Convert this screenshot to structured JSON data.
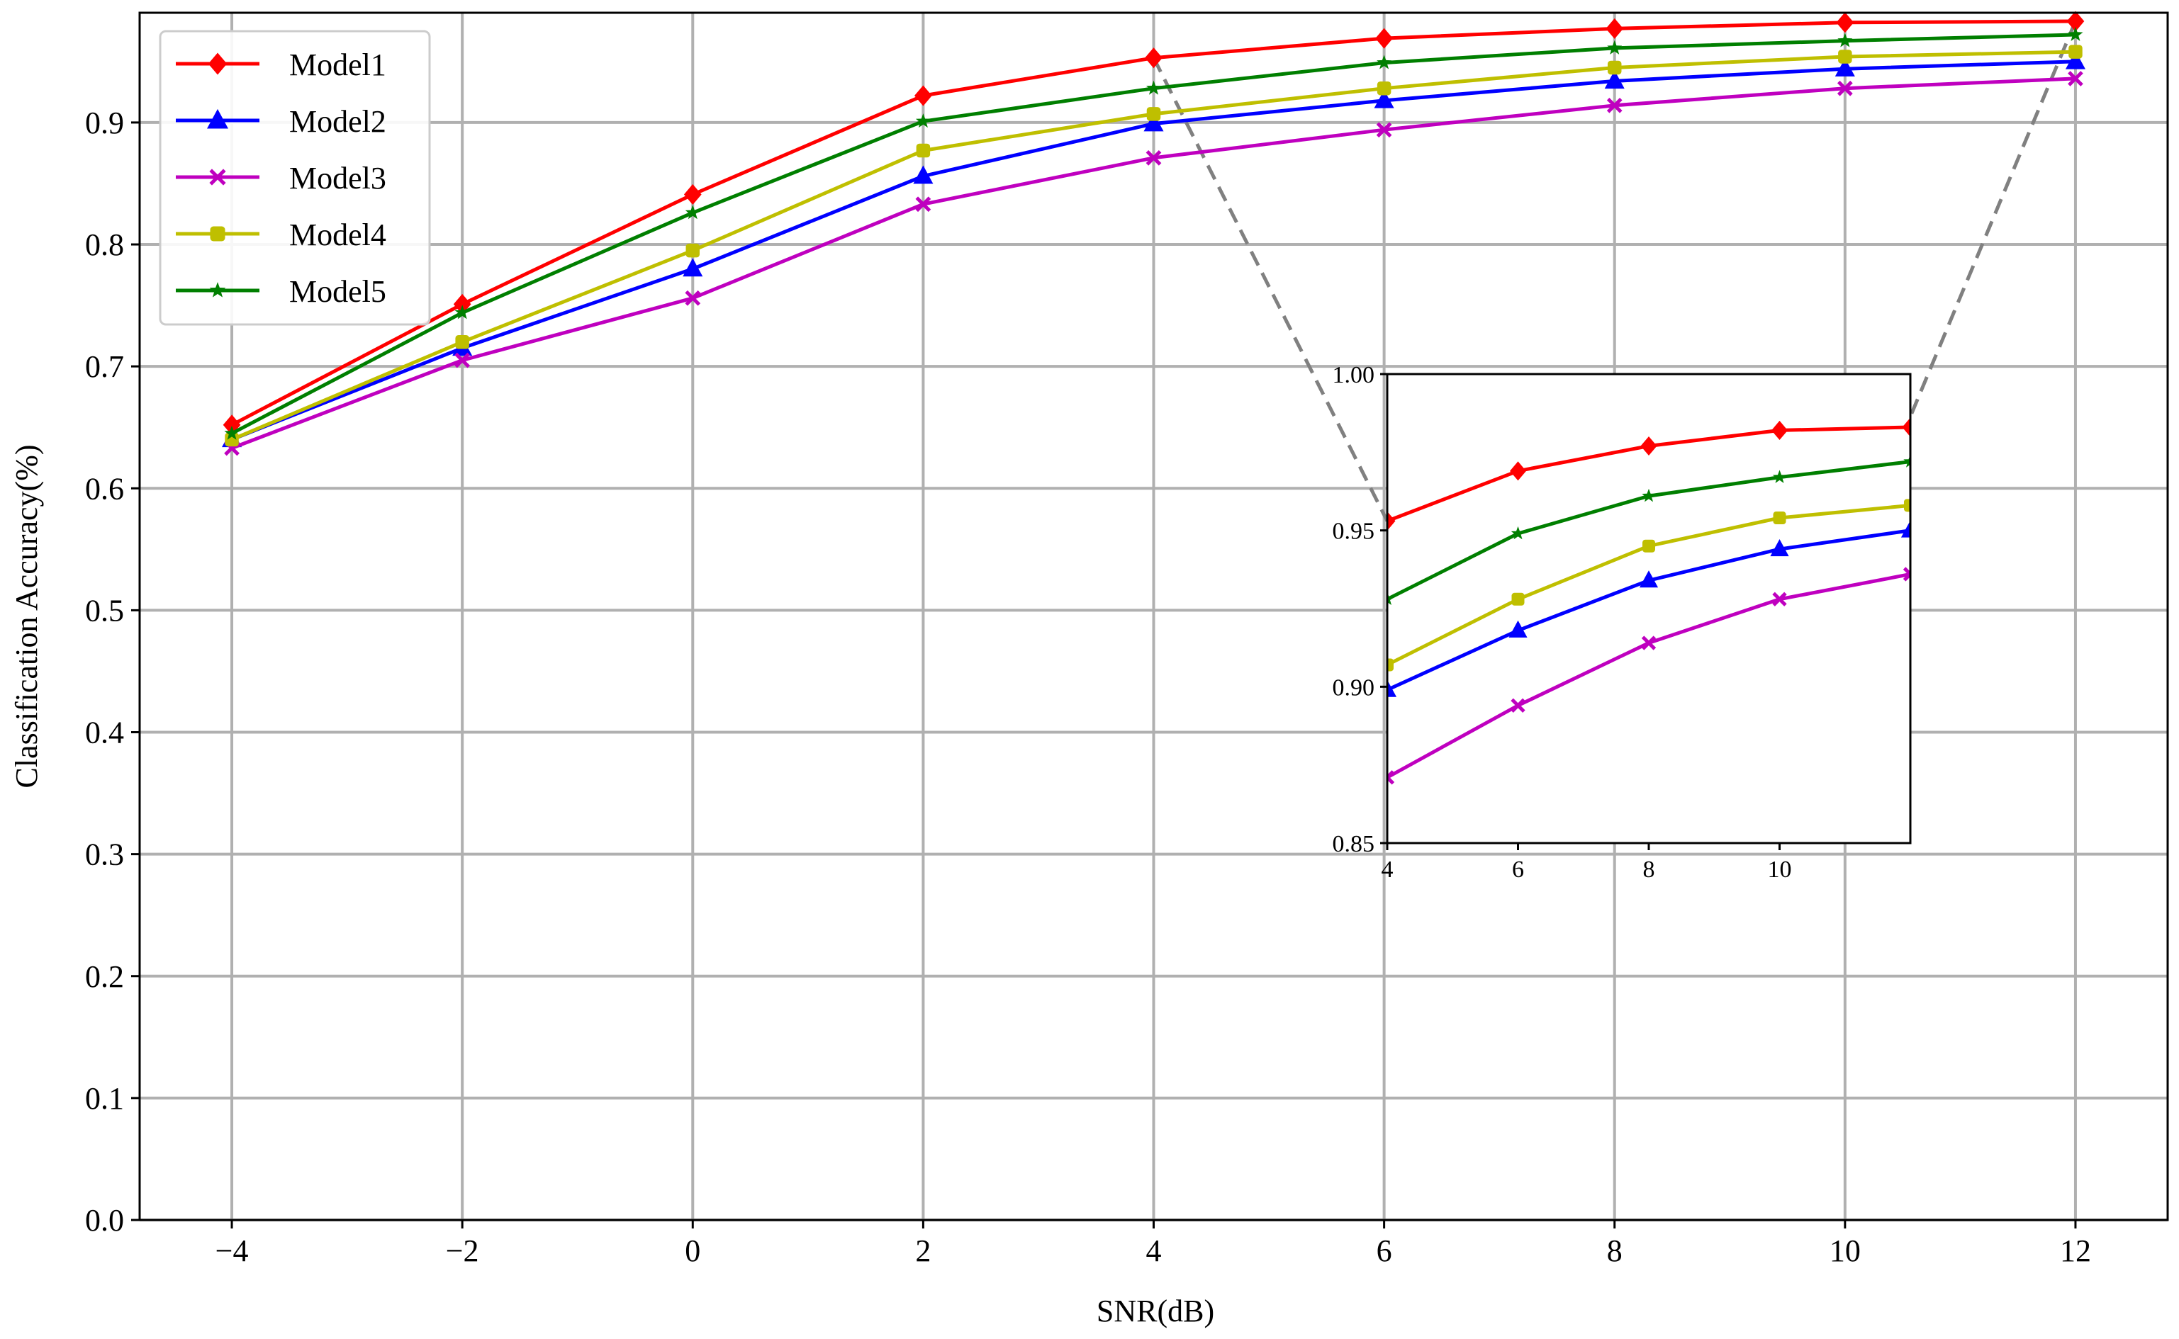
{
  "chart_data": {
    "type": "line",
    "title": "",
    "xlabel": "SNR(dB)",
    "ylabel": "Classification Accuracy(%)",
    "x": [
      -4,
      -2,
      0,
      2,
      4,
      6,
      8,
      10,
      12
    ],
    "xticks": [
      "−4",
      "−2",
      "0",
      "2",
      "4",
      "6",
      "8",
      "10",
      "12"
    ],
    "yticks": [
      "0.0",
      "0.1",
      "0.2",
      "0.3",
      "0.4",
      "0.5",
      "0.6",
      "0.7",
      "0.8",
      "0.9"
    ],
    "xlim": [
      -4.8,
      12.8
    ],
    "ylim": [
      0.0,
      0.99
    ],
    "grid": true,
    "legend_position": "top-left",
    "series": [
      {
        "name": "Model1",
        "color": "#ff0000",
        "marker": "diamond",
        "values": [
          0.652,
          0.751,
          0.841,
          0.922,
          0.953,
          0.969,
          0.977,
          0.982,
          0.983
        ]
      },
      {
        "name": "Model2",
        "color": "#0000ff",
        "marker": "triangle",
        "values": [
          0.64,
          0.715,
          0.78,
          0.856,
          0.899,
          0.918,
          0.934,
          0.944,
          0.95
        ]
      },
      {
        "name": "Model3",
        "color": "#bf00bf",
        "marker": "x",
        "values": [
          0.633,
          0.705,
          0.756,
          0.833,
          0.871,
          0.894,
          0.914,
          0.928,
          0.936
        ]
      },
      {
        "name": "Model4",
        "color": "#bfbf00",
        "marker": "square",
        "values": [
          0.64,
          0.72,
          0.795,
          0.877,
          0.907,
          0.928,
          0.945,
          0.954,
          0.958
        ]
      },
      {
        "name": "Model5",
        "color": "#007f00",
        "marker": "star",
        "values": [
          0.645,
          0.744,
          0.826,
          0.901,
          0.928,
          0.949,
          0.961,
          0.967,
          0.972
        ]
      }
    ],
    "inset": {
      "description": "zoomed view of SNR 4 to 12",
      "x_from": 4,
      "xlim": [
        4,
        12
      ],
      "ylim": [
        0.85,
        1.0
      ],
      "xticks": [
        "4",
        "6",
        "8",
        "10"
      ],
      "yticks": [
        "0.85",
        "0.90",
        "0.95",
        "1.00"
      ]
    }
  }
}
